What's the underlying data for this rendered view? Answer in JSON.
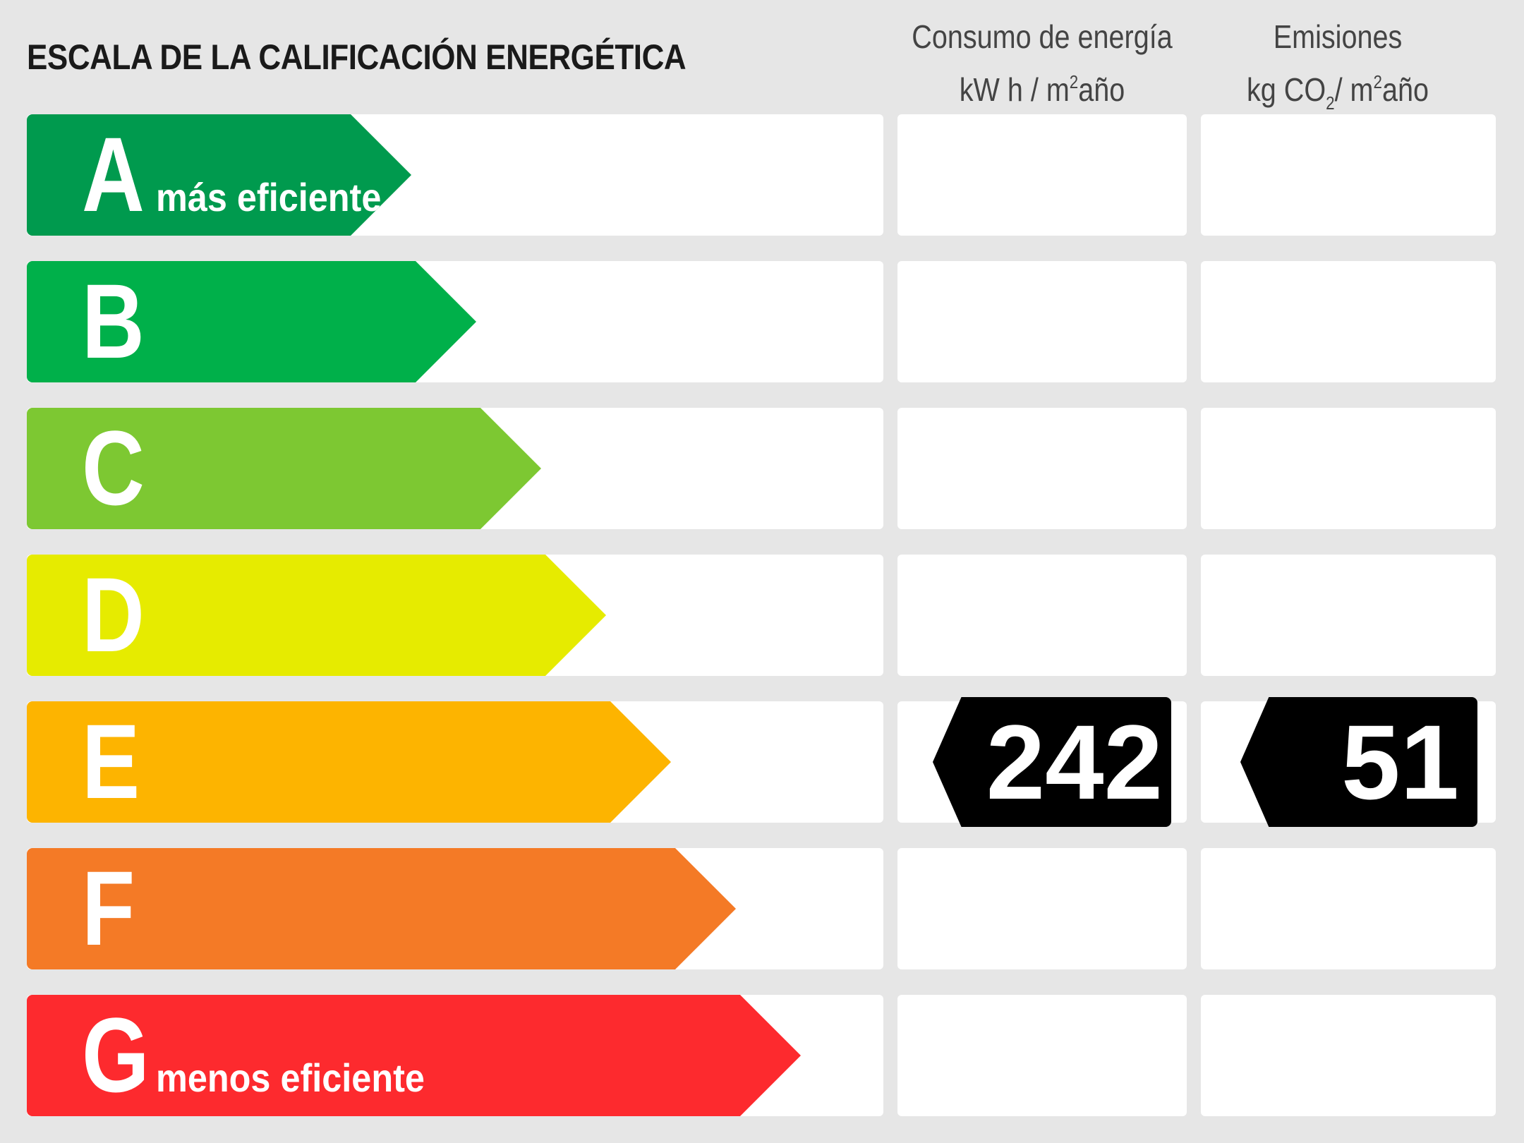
{
  "title": "ESCALA DE LA CALIFICACIÓN ENERGÉTICA",
  "headers": {
    "energy_line1": "Consumo de energía",
    "energy_line2_pre": "kW h / m",
    "energy_line2_sup": "2",
    "energy_line2_post": "año",
    "emis_line1": "Emisiones",
    "emis_line2_pre": "kg CO",
    "emis_line2_sub": "2",
    "emis_line2_mid": "/ m",
    "emis_line2_sup": "2",
    "emis_line2_post": "año"
  },
  "classes": [
    {
      "letter": "A",
      "label": "más eficiente",
      "color": "#009a4e"
    },
    {
      "letter": "B",
      "label": "",
      "color": "#00b04a"
    },
    {
      "letter": "C",
      "label": "",
      "color": "#7dc832"
    },
    {
      "letter": "D",
      "label": "",
      "color": "#e6eb00"
    },
    {
      "letter": "E",
      "label": "",
      "color": "#fdb400"
    },
    {
      "letter": "F",
      "label": "",
      "color": "#f47a26"
    },
    {
      "letter": "G",
      "label": "menos eficiente",
      "color": "#fd2a2e"
    }
  ],
  "rating": {
    "class": "E",
    "energy_value": "242",
    "emissions_value": "51"
  }
}
